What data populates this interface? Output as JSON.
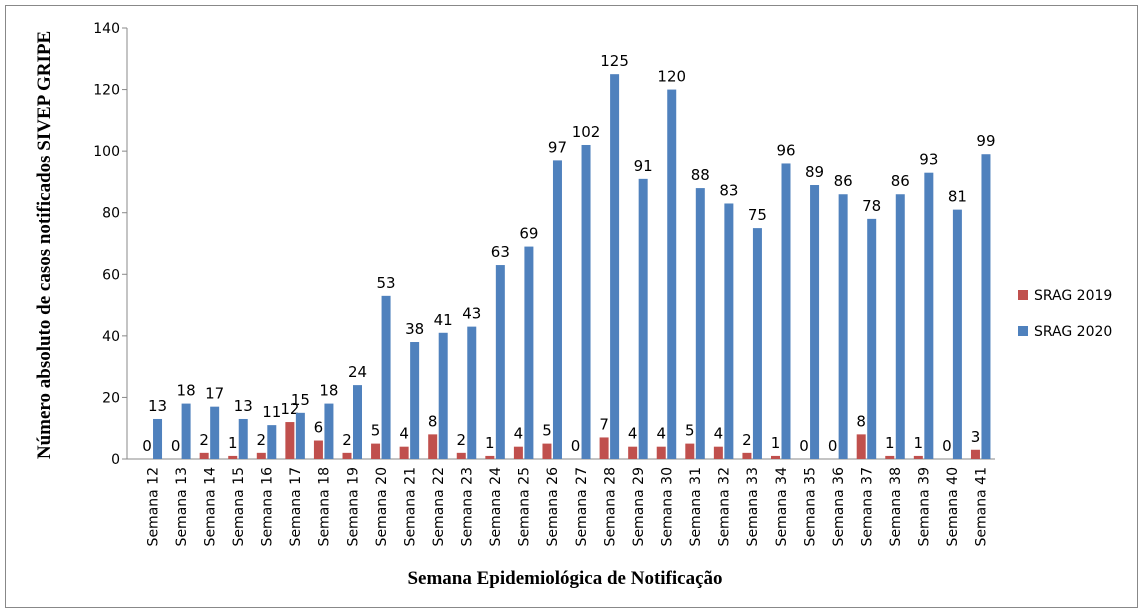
{
  "chart_data": {
    "type": "bar",
    "x_label": "Semana Epidemiológica de Notificação",
    "y_label": "Número absoluto de casos notificados SIVEP GRIPE",
    "categories": [
      "Semana 12",
      "Semana 13",
      "Semana 14",
      "Semana 15",
      "Semana 16",
      "Semana 17",
      "Semana 18",
      "Semana 19",
      "Semana 20",
      "Semana 21",
      "Semana 22",
      "Semana 23",
      "Semana 24",
      "Semana 25",
      "Semana 26",
      "Semana 27",
      "Semana 28",
      "Semana 29",
      "Semana 30",
      "Semana 31",
      "Semana 32",
      "Semana 33",
      "Semana 34",
      "Semana 35",
      "Semana 36",
      "Semana 37",
      "Semana 38",
      "Semana 39",
      "Semana 40",
      "Semana 41"
    ],
    "series": [
      {
        "name": "SRAG 2019",
        "color": "#c0504d",
        "values": [
          0,
          0,
          2,
          1,
          2,
          12,
          6,
          2,
          5,
          4,
          8,
          2,
          1,
          4,
          5,
          0,
          7,
          4,
          4,
          5,
          4,
          2,
          1,
          0,
          0,
          8,
          1,
          1,
          0,
          3
        ]
      },
      {
        "name": "SRAG 2020",
        "color": "#4f81bd",
        "values": [
          13,
          18,
          17,
          13,
          11,
          15,
          18,
          24,
          53,
          38,
          41,
          43,
          63,
          69,
          97,
          102,
          125,
          91,
          120,
          88,
          83,
          75,
          96,
          89,
          86,
          78,
          86,
          93,
          81,
          99
        ]
      }
    ],
    "ylim": [
      0,
      140
    ],
    "yticks": [
      0,
      20,
      40,
      60,
      80,
      100,
      120,
      140
    ],
    "grid": false,
    "legend": "right"
  }
}
